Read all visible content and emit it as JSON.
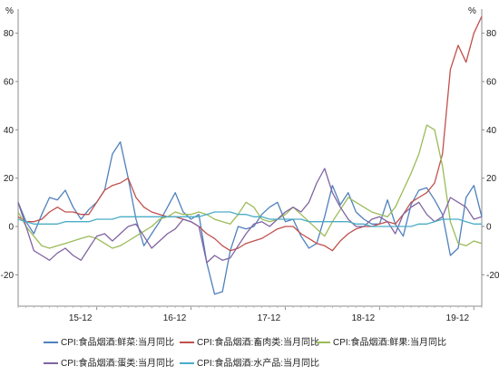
{
  "chart_data": {
    "type": "line",
    "unit_left": "%",
    "unit_right": "%",
    "y_ticks": [
      -20,
      0,
      20,
      40,
      60,
      80
    ],
    "ylim": [
      -33,
      90
    ],
    "x_range": [
      0,
      59
    ],
    "x_tick_labels": [
      "15-12",
      "16-12",
      "17-12",
      "18-12",
      "19-12"
    ],
    "x_tick_positions": [
      10,
      22,
      34,
      46,
      58
    ],
    "grid": false,
    "legend_position": "bottom",
    "series": [
      {
        "name": "CPI:食品烟酒:鲜菜:当月同比",
        "color": "#4f81bd",
        "values": [
          10,
          2,
          -3,
          5,
          12,
          11,
          15,
          8,
          3,
          7,
          10,
          15,
          30,
          35,
          20,
          3,
          -8,
          -3,
          2,
          8,
          14,
          6,
          3,
          5,
          -15,
          -28,
          -27,
          -10,
          0,
          -1,
          0,
          5,
          8,
          10,
          2,
          3,
          -4,
          -9,
          -7,
          4,
          17,
          9,
          14,
          6,
          3,
          1,
          1,
          11,
          1,
          -4,
          9,
          15,
          16,
          11,
          5,
          -12,
          -9,
          12,
          17,
          4
        ]
      },
      {
        "name": "CPI:食品烟酒:畜肉类:当月同比",
        "color": "#c0504d",
        "values": [
          4,
          2,
          2,
          3,
          6,
          8,
          6,
          6,
          5,
          5,
          10,
          15,
          17,
          18,
          20,
          12,
          8,
          6,
          5,
          4,
          4,
          3,
          2,
          0,
          -3,
          -5,
          -8,
          -10,
          -9,
          -7,
          -6,
          -5,
          -3,
          -1,
          0,
          0,
          -3,
          -5,
          -7,
          -8,
          -10,
          -6,
          -3,
          -1,
          0,
          0,
          1,
          2,
          1,
          5,
          10,
          12,
          14,
          18,
          30,
          65,
          75,
          68,
          80,
          87
        ]
      },
      {
        "name": "CPI:食品烟酒:鲜果:当月同比",
        "color": "#9bbb59",
        "values": [
          6,
          0,
          -4,
          -8,
          -9,
          -8,
          -7,
          -6,
          -5,
          -4,
          -5,
          -7,
          -9,
          -8,
          -6,
          -4,
          -2,
          0,
          3,
          4,
          6,
          5,
          5,
          6,
          5,
          3,
          2,
          1,
          5,
          10,
          8,
          3,
          2,
          3,
          5,
          8,
          5,
          2,
          -1,
          -4,
          2,
          7,
          12,
          10,
          8,
          6,
          5,
          4,
          8,
          15,
          22,
          30,
          42,
          40,
          25,
          2,
          -7,
          -8,
          -6,
          -7
        ]
      },
      {
        "name": "CPI:食品烟酒:蛋类:当月同比",
        "color": "#8064a2",
        "values": [
          10,
          0,
          -10,
          -12,
          -14,
          -11,
          -9,
          -12,
          -14,
          -9,
          -4,
          -3,
          -6,
          -3,
          0,
          1,
          -4,
          -9,
          -6,
          -3,
          -1,
          3,
          2,
          0,
          -15,
          -12,
          -14,
          -13,
          -8,
          -3,
          1,
          2,
          0,
          3,
          6,
          8,
          6,
          10,
          18,
          24,
          14,
          8,
          3,
          0,
          0,
          3,
          4,
          2,
          -3,
          5,
          8,
          10,
          5,
          2,
          4,
          12,
          10,
          8,
          3,
          4
        ]
      },
      {
        "name": "CPI:食品烟酒:水产品:当月同比",
        "color": "#4bacc6",
        "values": [
          3,
          2,
          1,
          1,
          1,
          1,
          2,
          2,
          2,
          2,
          3,
          3,
          3,
          4,
          4,
          4,
          4,
          4,
          4,
          4,
          4,
          4,
          4,
          4,
          5,
          6,
          6,
          6,
          5,
          5,
          4,
          4,
          3,
          3,
          3,
          3,
          3,
          2,
          2,
          2,
          2,
          2,
          2,
          1,
          1,
          0,
          0,
          0,
          0,
          0,
          0,
          1,
          1,
          2,
          3,
          3,
          3,
          2,
          1,
          1
        ]
      }
    ]
  }
}
